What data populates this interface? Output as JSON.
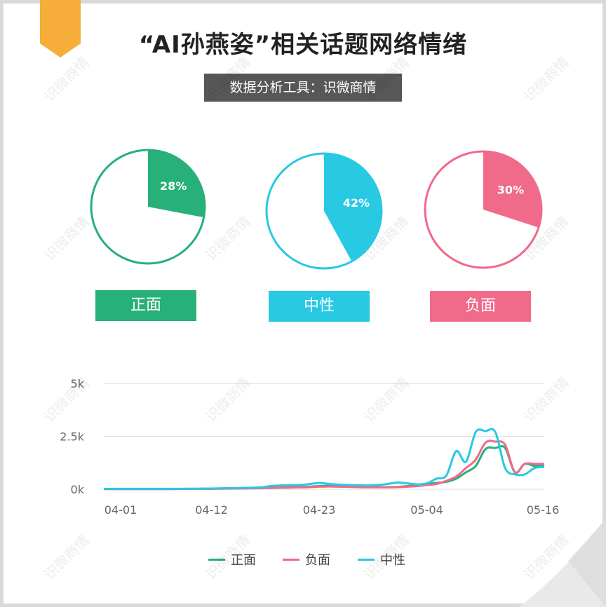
{
  "title": "“AI孙燕姿”相关话题网络情绪",
  "subtitle": "数据分析工具：识微商情",
  "watermark": "识微商情",
  "colors": {
    "positive": "#27b07a",
    "neutral": "#27c9e3",
    "negative": "#f06a8a",
    "bookmark": "#f6ad3a"
  },
  "sentiment": [
    {
      "label": "正面",
      "percent": 28,
      "percent_text": "28%",
      "color": "#27b07a"
    },
    {
      "label": "中性",
      "percent": 42,
      "percent_text": "42%",
      "color": "#27c9e3"
    },
    {
      "label": "负面",
      "percent": 30,
      "percent_text": "30%",
      "color": "#f06a8a"
    }
  ],
  "chart_data": {
    "type": "line",
    "x": [
      "04-01",
      "04-02",
      "04-03",
      "04-04",
      "04-05",
      "04-06",
      "04-07",
      "04-08",
      "04-09",
      "04-10",
      "04-11",
      "04-12",
      "04-13",
      "04-14",
      "04-15",
      "04-16",
      "04-17",
      "04-18",
      "04-19",
      "04-20",
      "04-21",
      "04-22",
      "04-23",
      "04-24",
      "04-25",
      "04-26",
      "04-27",
      "04-28",
      "04-29",
      "04-30",
      "05-01",
      "05-02",
      "05-03",
      "05-04",
      "05-05",
      "05-06",
      "05-07",
      "05-08",
      "05-09",
      "05-10",
      "05-11",
      "05-12",
      "05-13",
      "05-14",
      "05-15",
      "05-16"
    ],
    "xticks": [
      "04-01",
      "04-12",
      "04-23",
      "05-04",
      "05-16"
    ],
    "yticks": [
      "0k",
      "2.5k",
      "5k"
    ],
    "ylim": [
      0,
      5000
    ],
    "grid": true,
    "legend_position": "bottom",
    "series": [
      {
        "name": "正面",
        "color": "#27b07a",
        "values": [
          15,
          15,
          15,
          15,
          15,
          15,
          15,
          15,
          18,
          20,
          22,
          28,
          35,
          40,
          45,
          50,
          60,
          70,
          85,
          100,
          110,
          120,
          150,
          160,
          140,
          130,
          120,
          110,
          100,
          100,
          110,
          150,
          200,
          250,
          300,
          350,
          500,
          800,
          1100,
          1900,
          1950,
          1950,
          800,
          1200,
          1100,
          1150
        ]
      },
      {
        "name": "负面",
        "color": "#f06a8a",
        "values": [
          10,
          10,
          10,
          10,
          10,
          10,
          10,
          10,
          12,
          15,
          18,
          20,
          25,
          30,
          35,
          40,
          50,
          60,
          70,
          80,
          90,
          100,
          120,
          130,
          120,
          110,
          100,
          90,
          90,
          90,
          100,
          120,
          150,
          200,
          250,
          400,
          600,
          1000,
          1400,
          2200,
          2250,
          2100,
          800,
          1200,
          1200,
          1200
        ]
      },
      {
        "name": "中性",
        "color": "#27c9e3",
        "values": [
          20,
          20,
          20,
          20,
          20,
          20,
          20,
          20,
          22,
          25,
          28,
          35,
          45,
          55,
          60,
          70,
          90,
          150,
          180,
          190,
          200,
          240,
          300,
          250,
          220,
          200,
          190,
          180,
          200,
          250,
          320,
          280,
          230,
          280,
          500,
          650,
          1800,
          1300,
          2700,
          2750,
          2700,
          1000,
          700,
          700,
          1000,
          1050
        ]
      }
    ]
  }
}
